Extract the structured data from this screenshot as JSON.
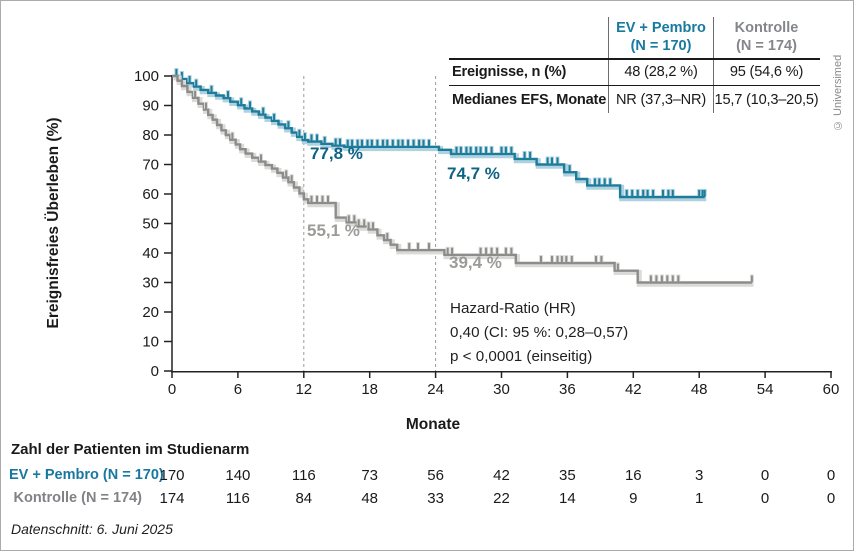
{
  "figure": {
    "copyright": "© Universimed"
  },
  "colors": {
    "blue_curve": "#1e7b99",
    "blue_glow": "#aed2e0",
    "blue_text": "#0e6384",
    "gray_curve": "#8c8c8a",
    "gray_glow": "#dadad8",
    "gray_text": "#9b9b99",
    "table_blue": "#177a9e",
    "table_gray": "#84868a"
  },
  "results_table": {
    "columns": [
      {
        "name": "EV + Pembro",
        "n": "(N = 170)"
      },
      {
        "name": "Kontrolle",
        "n": "(N = 174)"
      }
    ],
    "rows": [
      {
        "label": "Ereignisse, n (%)",
        "values": [
          "48 (28,2 %)",
          "95 (54,6 %)"
        ]
      },
      {
        "label": "Medianes EFS, Monate",
        "values": [
          "NR (37,3–NR)",
          "15,7 (10,3–20,5)"
        ]
      }
    ]
  },
  "annotations": {
    "ev_12m": "77,8 %",
    "ev_24m": "74,7 %",
    "ctrl_12m": "55,1 %",
    "ctrl_24m": "39,4 %"
  },
  "hazard_block": {
    "title": "Hazard-Ratio (HR)",
    "ci": "0,40 (CI: 95 %: 0,28–0,57)",
    "p": "p < 0,0001 (einseitig)"
  },
  "at_risk": {
    "title": "Zahl der Patienten im Studienarm",
    "rows": [
      {
        "label": "EV + Pembro (N = 170)",
        "counts": [
          170,
          140,
          116,
          73,
          56,
          42,
          35,
          16,
          3,
          0,
          0
        ]
      },
      {
        "label": "Kontrolle (N = 174)",
        "counts": [
          174,
          116,
          84,
          48,
          33,
          22,
          14,
          9,
          1,
          0,
          0
        ]
      }
    ],
    "cutoff": "Datenschnitt: 6. Juni 2025"
  },
  "chart_data": {
    "type": "line",
    "subtype": "kaplan-meier-step",
    "title": "",
    "xlabel": "Monate",
    "ylabel": "Ereignisfreies Überleben (%)",
    "xlim": [
      0,
      60
    ],
    "ylim": [
      0,
      100
    ],
    "x_ticks": [
      0,
      6,
      12,
      18,
      24,
      30,
      36,
      42,
      48,
      54,
      60
    ],
    "y_ticks": [
      0,
      10,
      20,
      30,
      40,
      50,
      60,
      70,
      80,
      90,
      100
    ],
    "dashed_x": [
      12,
      24
    ],
    "grid": false,
    "landmarks": [
      {
        "month": 12,
        "ev_pembro_pct": 77.8,
        "kontrolle_pct": 55.1
      },
      {
        "month": 24,
        "ev_pembro_pct": 74.7,
        "kontrolle_pct": 39.4
      }
    ],
    "series": [
      {
        "name": "EV + Pembro",
        "color": "#1e7b99",
        "glow": "#aed2e0",
        "end": 48.5,
        "steps": [
          [
            0,
            100
          ],
          [
            0.7,
            99
          ],
          [
            1.3,
            97.6
          ],
          [
            2,
            96.4
          ],
          [
            2.6,
            95.3
          ],
          [
            3.3,
            94.3
          ],
          [
            4,
            93.4
          ],
          [
            4.7,
            92.5
          ],
          [
            5.3,
            91.3
          ],
          [
            6,
            90.1
          ],
          [
            6.6,
            89
          ],
          [
            7.3,
            88
          ],
          [
            7.9,
            86.9
          ],
          [
            8.5,
            85.9
          ],
          [
            9.1,
            84.8
          ],
          [
            9.7,
            83.6
          ],
          [
            10.3,
            82.3
          ],
          [
            10.9,
            80.8
          ],
          [
            11.4,
            79.4
          ],
          [
            11.9,
            78.3
          ],
          [
            12.4,
            77.8
          ],
          [
            13.6,
            77
          ],
          [
            14.6,
            76.4
          ],
          [
            15.7,
            76
          ],
          [
            24.3,
            75
          ],
          [
            25.4,
            73.6
          ],
          [
            31.2,
            71.9
          ],
          [
            33.2,
            70
          ],
          [
            35.7,
            67.4
          ],
          [
            36.8,
            65.1
          ],
          [
            37.8,
            62.9
          ],
          [
            40.8,
            59
          ]
        ],
        "censors": [
          0.4,
          0.9,
          1.6,
          2.2,
          3.6,
          5.1,
          6.3,
          7.1,
          8.3,
          9.3,
          10.6,
          11.6,
          12.1,
          12.7,
          13.2,
          13.9,
          14.9,
          15.3,
          16.0,
          16.4,
          16.9,
          17.3,
          17.8,
          18.2,
          18.7,
          19.2,
          19.6,
          20.1,
          20.6,
          21.0,
          21.5,
          22.0,
          22.5,
          22.9,
          23.4,
          25.9,
          26.3,
          26.8,
          27.2,
          27.7,
          28.1,
          28.6,
          29.1,
          30.0,
          30.4,
          30.9,
          32.1,
          32.6,
          34.2,
          34.6,
          35.1,
          36.2,
          38.5,
          38.9,
          39.4,
          39.9,
          41.4,
          41.9,
          42.4,
          42.9,
          43.3,
          43.8,
          44.7,
          45.2,
          45.6,
          48.0,
          48.3,
          48.5
        ]
      },
      {
        "name": "Kontrolle",
        "color": "#8c8c8a",
        "glow": "#dadad8",
        "end": 52.8,
        "steps": [
          [
            0,
            100
          ],
          [
            0.5,
            98.4
          ],
          [
            0.9,
            96.6
          ],
          [
            1.4,
            94.6
          ],
          [
            1.9,
            92.6
          ],
          [
            2.4,
            90.6
          ],
          [
            2.9,
            88.6
          ],
          [
            3.3,
            86.8
          ],
          [
            3.7,
            85.2
          ],
          [
            4.1,
            83.4
          ],
          [
            4.5,
            81.6
          ],
          [
            4.9,
            80
          ],
          [
            5.3,
            78.4
          ],
          [
            5.8,
            76.8
          ],
          [
            6.2,
            75.2
          ],
          [
            6.7,
            73.7
          ],
          [
            7.3,
            72.3
          ],
          [
            7.9,
            71
          ],
          [
            8.5,
            69.8
          ],
          [
            9.1,
            68.6
          ],
          [
            9.6,
            67.2
          ],
          [
            10.1,
            65.6
          ],
          [
            10.6,
            64
          ],
          [
            11.1,
            62.2
          ],
          [
            11.6,
            60.2
          ],
          [
            12,
            58.2
          ],
          [
            12.4,
            57
          ],
          [
            14.9,
            52
          ],
          [
            15.9,
            50.4
          ],
          [
            16.9,
            49
          ],
          [
            17.9,
            48
          ],
          [
            18.7,
            46
          ],
          [
            19.3,
            44.4
          ],
          [
            19.9,
            42.8
          ],
          [
            20.5,
            41
          ],
          [
            24.8,
            39.4
          ],
          [
            31.3,
            36.6
          ],
          [
            40.3,
            34
          ],
          [
            42.4,
            30
          ]
        ],
        "censors": [
          2.1,
          3.1,
          5.5,
          8.1,
          10.4,
          10.9,
          12.7,
          13.2,
          13.7,
          14.2,
          16.1,
          16.6,
          17.0,
          17.5,
          17.9,
          18.3,
          19.6,
          21.6,
          22.4,
          23.4,
          25.1,
          25.5,
          28.1,
          28.6,
          29.1,
          29.6,
          30.4,
          30.9,
          33.6,
          34.6,
          35.1,
          35.5,
          35.9,
          36.4,
          38.6,
          39.1,
          40.6,
          43.6,
          44.1,
          44.6,
          45.1,
          45.6,
          46.1,
          52.8
        ]
      }
    ]
  }
}
